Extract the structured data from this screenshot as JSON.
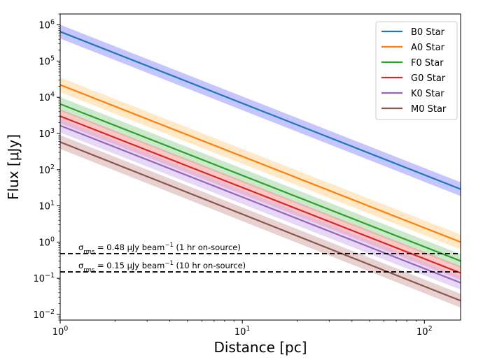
{
  "chart_data": {
    "type": "line",
    "xscale": "log",
    "yscale": "log",
    "xlabel": "Distance [pc]",
    "ylabel": "Flux [μJy]",
    "xlim": [
      1,
      158
    ],
    "ylim": [
      0.007,
      2000000
    ],
    "x_ticks": [
      {
        "value": 1,
        "base": "10",
        "exp": "0"
      },
      {
        "value": 10,
        "base": "10",
        "exp": "1"
      },
      {
        "value": 100,
        "base": "10",
        "exp": "2"
      }
    ],
    "y_ticks": [
      {
        "value": 0.01,
        "base": "10",
        "exp": "−2"
      },
      {
        "value": 0.1,
        "base": "10",
        "exp": "−1"
      },
      {
        "value": 1,
        "base": "10",
        "exp": "0"
      },
      {
        "value": 10,
        "base": "10",
        "exp": "1"
      },
      {
        "value": 100,
        "base": "10",
        "exp": "2"
      },
      {
        "value": 1000,
        "base": "10",
        "exp": "3"
      },
      {
        "value": 10000,
        "base": "10",
        "exp": "4"
      },
      {
        "value": 100000,
        "base": "10",
        "exp": "5"
      },
      {
        "value": 1000000,
        "base": "10",
        "exp": "6"
      }
    ],
    "series": [
      {
        "name": "B0 Star",
        "color": "#1f77b4",
        "band_color": "#7f7fff",
        "y_at_1pc": 650000,
        "y_at_158pc": 29,
        "band_factor": 1.55
      },
      {
        "name": "A0 Star",
        "color": "#ff7f0e",
        "band_color": "#ffcf80",
        "y_at_1pc": 22000,
        "y_at_158pc": 1.0,
        "band_factor": 1.6
      },
      {
        "name": "F0 Star",
        "color": "#2ca02c",
        "band_color": "#8fcf8f",
        "y_at_1pc": 6500,
        "y_at_158pc": 0.3,
        "band_factor": 1.55
      },
      {
        "name": "G0 Star",
        "color": "#d62728",
        "band_color": "#ff8080",
        "y_at_1pc": 3000,
        "y_at_158pc": 0.14,
        "band_factor": 1.55
      },
      {
        "name": "K0 Star",
        "color": "#9467bd",
        "band_color": "#c9a8e8",
        "y_at_1pc": 1650,
        "y_at_158pc": 0.075,
        "band_factor": 1.55
      },
      {
        "name": "M0 Star",
        "color": "#8c564b",
        "band_color": "#cc9999",
        "y_at_1pc": 580,
        "y_at_158pc": 0.024,
        "band_factor": 1.55
      }
    ],
    "hlines": [
      {
        "y": 0.48,
        "style": "dashed",
        "label_sigma": "σ",
        "label_sub": "rms",
        "label_mid": " = 0.48 μJy beam",
        "label_sup": "−1",
        "label_end": " (1 hr on-source)"
      },
      {
        "y": 0.15,
        "style": "dashed",
        "label_sigma": "σ",
        "label_sub": "rms",
        "label_mid": " = 0.15 μJy beam",
        "label_sup": "−1",
        "label_end": " (10 hr on-source)"
      }
    ],
    "legend_position": "top-right"
  }
}
